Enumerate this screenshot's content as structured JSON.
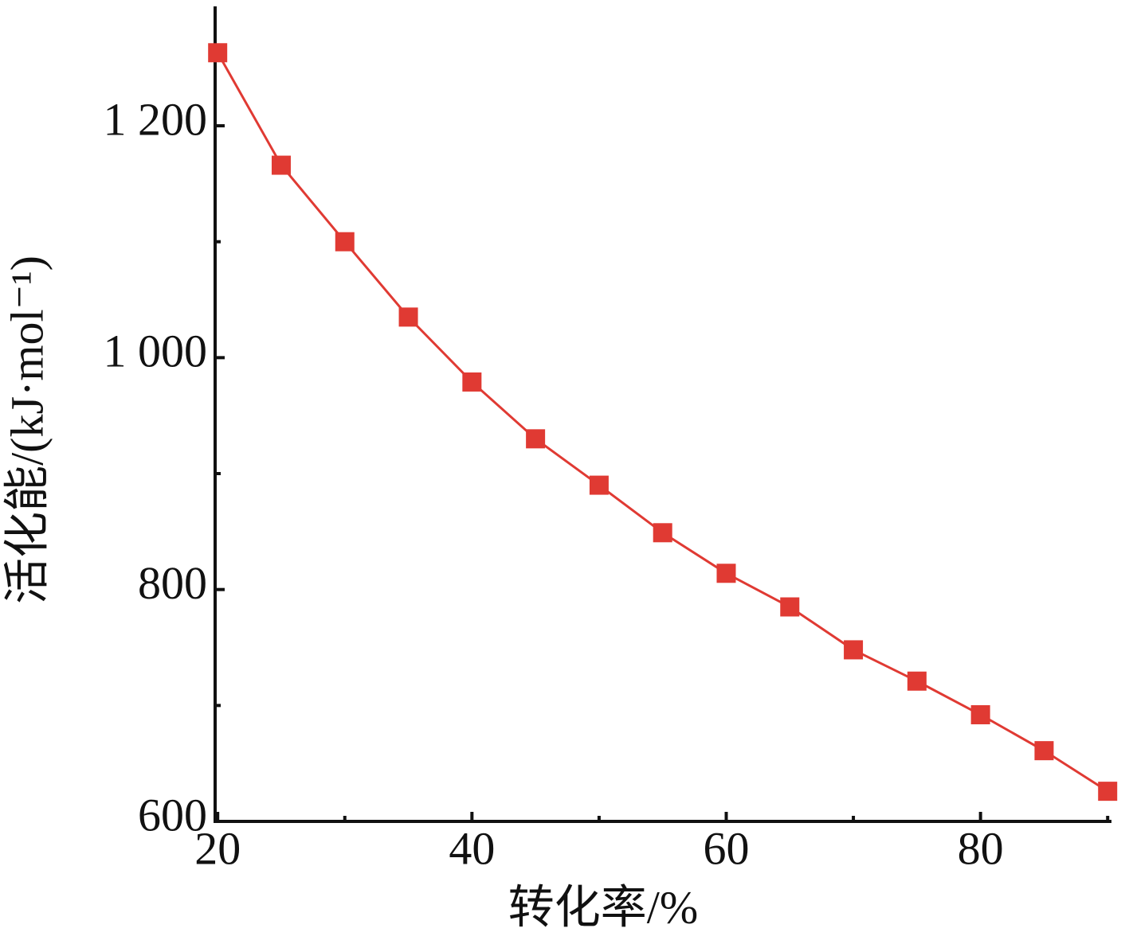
{
  "chart_data": {
    "type": "line",
    "xlabel": "转化率/%",
    "ylabel": "活化能/(kJ·mol⁻¹)",
    "x": [
      20,
      25,
      30,
      35,
      40,
      45,
      50,
      55,
      60,
      65,
      70,
      75,
      80,
      85,
      90
    ],
    "series": [
      {
        "color": "#e03a33",
        "marker": "square",
        "values": [
          1263,
          1166,
          1100,
          1035,
          979,
          930,
          890,
          849,
          814,
          785,
          748,
          721,
          692,
          661,
          626
        ]
      }
    ],
    "xlim": [
      19.8,
      90.3
    ],
    "xticks": [
      20,
      40,
      60,
      80
    ],
    "xminor_ticks": [
      30,
      50,
      70,
      90
    ],
    "ylim": [
      600,
      1303
    ],
    "yticks": [
      {
        "value": 600,
        "label": "600"
      },
      {
        "value": 800,
        "label": "800"
      },
      {
        "value": 1000,
        "label": "1 000"
      },
      {
        "value": 1200,
        "label": "1 200"
      }
    ],
    "yminor_ticks": [
      700,
      900,
      1100
    ]
  }
}
